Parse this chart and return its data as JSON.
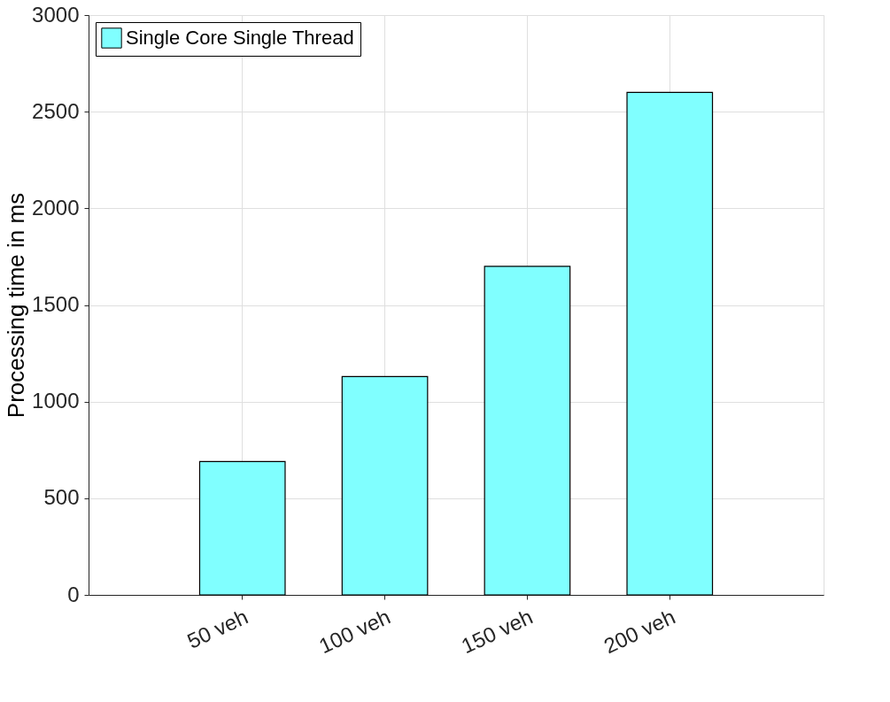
{
  "chart_data": {
    "type": "bar",
    "categories": [
      "50 veh",
      "100 veh",
      "150 veh",
      "200 veh"
    ],
    "ylabel": "Processing time in ms",
    "series": [
      {
        "name": "Single Core Single Thread",
        "color": "#80ffff",
        "values": [
          690,
          1130,
          1700,
          2600
        ]
      }
    ],
    "ylim": [
      0,
      3000
    ],
    "yticks": [
      0,
      500,
      1000,
      1500,
      2000,
      2500,
      3000
    ],
    "grid": true,
    "legend": "top left"
  }
}
